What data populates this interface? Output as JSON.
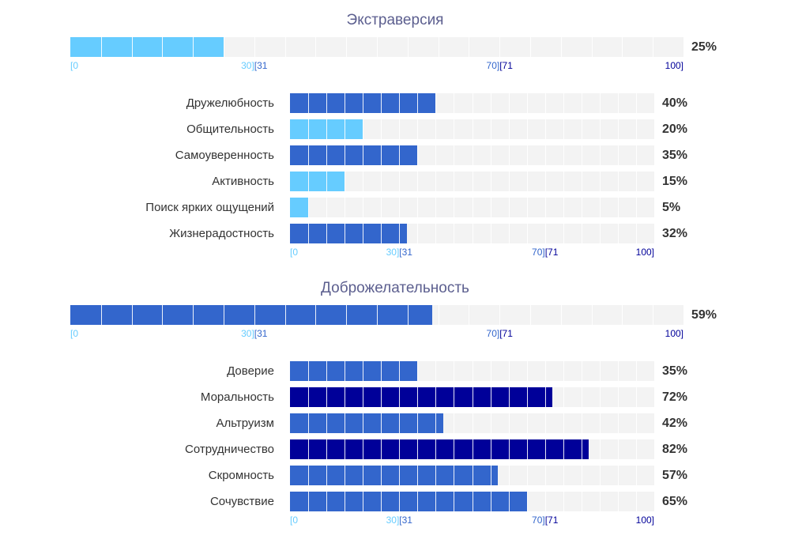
{
  "colors": {
    "low": "#66ccff",
    "mid": "#3366cc",
    "high": "#000099",
    "track": "#f3f3f3",
    "title": "#5c5f8f"
  },
  "tick_labels": {
    "t0": "[0",
    "t30": "30]",
    "t31": "[31",
    "t70": "70]",
    "t71": "[71",
    "t100": "100]"
  },
  "chart_data": [
    {
      "type": "bar",
      "title": "Экстраверсия",
      "orientation": "horizontal",
      "xlim": [
        0,
        100
      ],
      "grid": false,
      "summary": {
        "value": 25,
        "value_label": "25%"
      },
      "categories": [
        "Дружелюбность",
        "Общительность",
        "Самоуверенность",
        "Активность",
        "Поиск ярких ощущений",
        "Жизнерадостность"
      ],
      "values": [
        40,
        20,
        35,
        15,
        5,
        32
      ],
      "value_labels": [
        "40%",
        "20%",
        "35%",
        "15%",
        "5%",
        "32%"
      ]
    },
    {
      "type": "bar",
      "title": "Доброжелательность",
      "orientation": "horizontal",
      "xlim": [
        0,
        100
      ],
      "grid": false,
      "summary": {
        "value": 59,
        "value_label": "59%"
      },
      "categories": [
        "Доверие",
        "Моральность",
        "Альтруизм",
        "Сотрудничество",
        "Скромность",
        "Сочувствие"
      ],
      "values": [
        35,
        72,
        42,
        82,
        57,
        65
      ],
      "value_labels": [
        "35%",
        "72%",
        "42%",
        "82%",
        "57%",
        "65%"
      ]
    }
  ]
}
